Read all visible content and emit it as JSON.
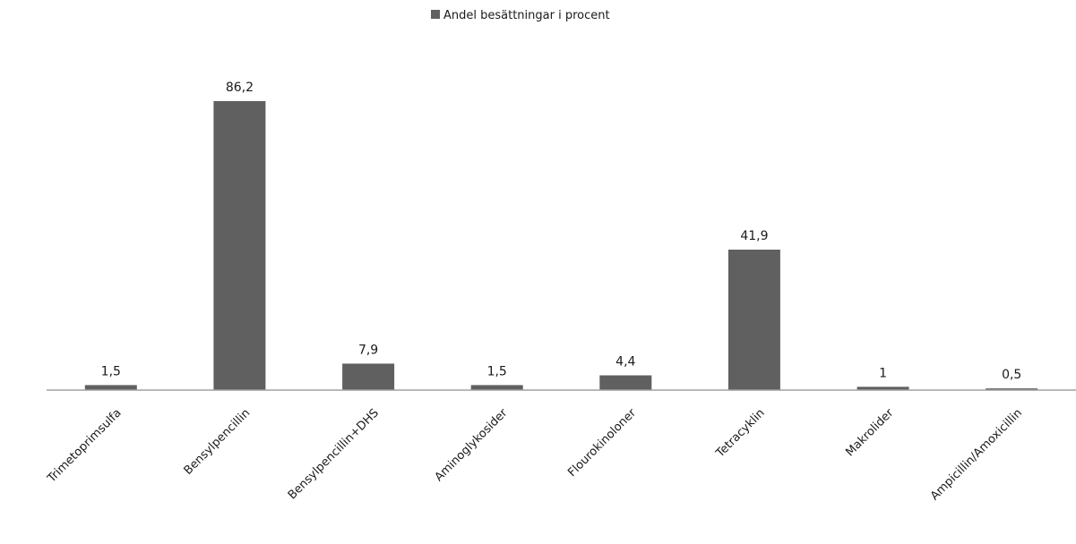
{
  "chart_data": {
    "type": "bar",
    "title": "",
    "xlabel": "",
    "ylabel": "",
    "legend": {
      "position": "top-center",
      "label": "Andel besättningar i procent",
      "color": "#606060"
    },
    "categories": [
      "Trimetoprimsulfa",
      "Bensylpencillin",
      "Bensylpencillin+DHS",
      "Aminoglykosider",
      "Flourokinoloner",
      "Tetracyklin",
      "Makrolider",
      "Ampicillin/Amoxicillin"
    ],
    "series": [
      {
        "name": "Andel besättningar i procent",
        "color": "#606060",
        "values": [
          1.5,
          86.2,
          7.9,
          1.5,
          4.4,
          41.9,
          1,
          0.5
        ],
        "data_labels": [
          "1,5",
          "86,2",
          "7,9",
          "1,5",
          "4,4",
          "41,9",
          "1",
          "0,5"
        ]
      }
    ],
    "ylim": [
      0,
      86.2
    ],
    "grid": false,
    "axis_color": "#a0a0a0"
  }
}
